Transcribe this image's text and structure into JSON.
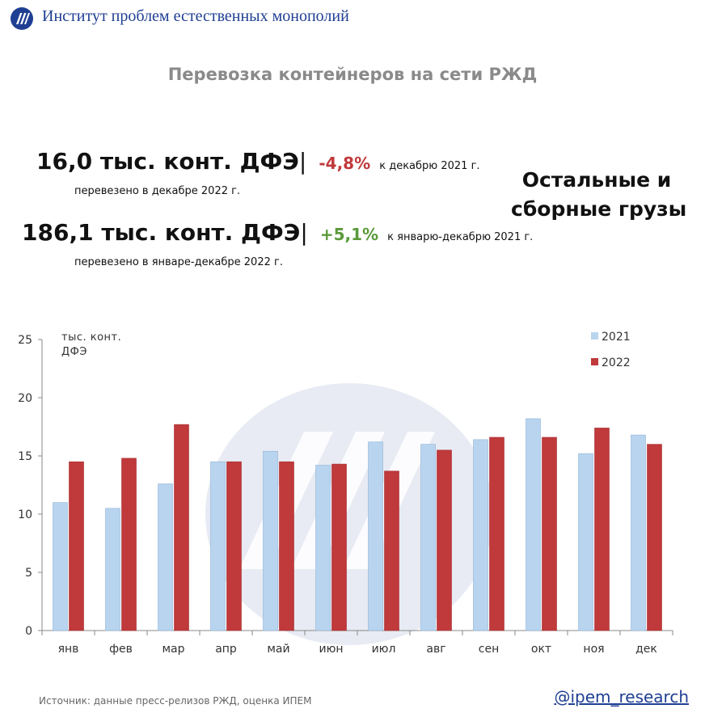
{
  "header": {
    "org_name": "Институт проблем естественных монополий"
  },
  "title": "Перевозка контейнеров на сети РЖД",
  "stats": {
    "december": {
      "value": "16,0 тыс. конт. ДФЭ",
      "change": "-4,8%",
      "comparison": "к декабрю 2021 г.",
      "caption": "перевезено в декабре 2022 г."
    },
    "year": {
      "value": "186,1 тыс. конт. ДФЭ",
      "change": "+5,1%",
      "comparison": "к январю-декабрю 2021 г.",
      "caption": "перевезено в январе-декабре 2022 г."
    }
  },
  "side_label": {
    "line1": "Остальные и",
    "line2": "сборные грузы"
  },
  "chart_data": {
    "type": "bar",
    "unit_label": {
      "line1": "тыс. конт.",
      "line2": "ДФЭ"
    },
    "categories": [
      "янв",
      "фев",
      "мар",
      "апр",
      "май",
      "июн",
      "июл",
      "авг",
      "сен",
      "окт",
      "ноя",
      "дек"
    ],
    "series": [
      {
        "name": "2021",
        "color": "#b8d4ef",
        "values": [
          11.0,
          10.5,
          12.6,
          14.5,
          15.4,
          14.2,
          16.2,
          16.0,
          16.4,
          18.2,
          15.2,
          16.8
        ]
      },
      {
        "name": "2022",
        "color": "#c0393b",
        "values": [
          14.5,
          14.8,
          17.7,
          14.5,
          14.5,
          14.3,
          13.7,
          15.5,
          16.6,
          16.6,
          17.4,
          16.0
        ]
      }
    ],
    "ylim": [
      0,
      25
    ],
    "yticks": [
      0,
      5,
      10,
      15,
      20,
      25
    ],
    "legend_position": "top-right",
    "grid": false
  },
  "footer": {
    "source": "Источник: данные пресс-релизов РЖД, оценка ИПЕМ",
    "handle": "@ipem_research"
  }
}
